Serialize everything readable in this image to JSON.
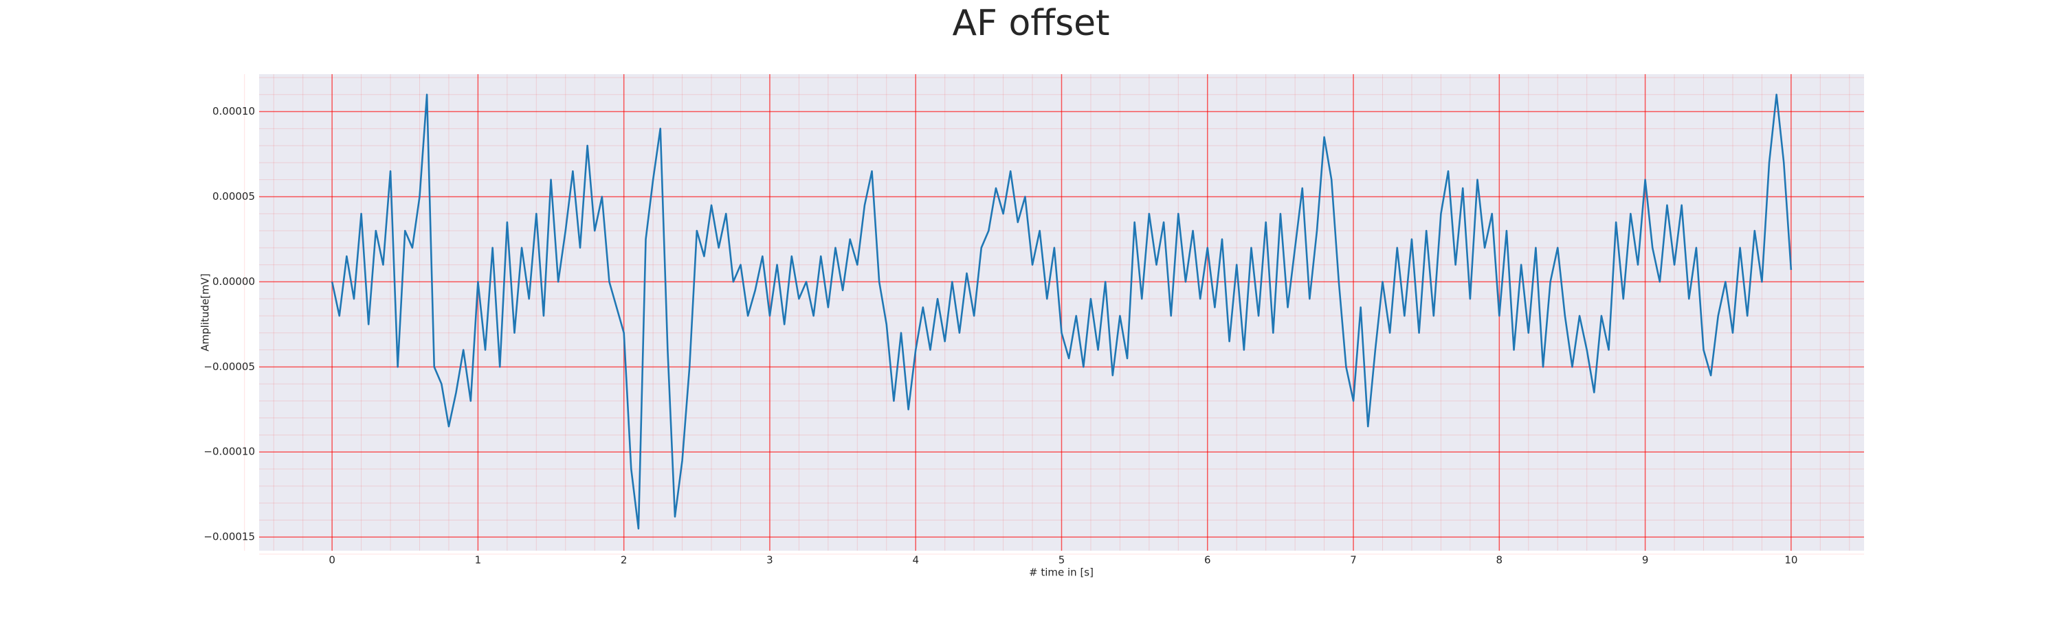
{
  "chart_data": {
    "type": "line",
    "title": "AF offset",
    "xlabel": "# time in [s]",
    "ylabel": "Amplitude[mV]",
    "xlim": [
      -0.5,
      10.5
    ],
    "ylim": [
      -0.000158,
      0.000122
    ],
    "xticks": [
      0,
      1,
      2,
      3,
      4,
      5,
      6,
      7,
      8,
      9,
      10
    ],
    "yticks": [
      {
        "value": -0.00015,
        "label": "−0.00015"
      },
      {
        "value": -0.0001,
        "label": "−0.00010"
      },
      {
        "value": -5e-05,
        "label": "−0.00005"
      },
      {
        "value": 0,
        "label": "0.00000"
      },
      {
        "value": 5e-05,
        "label": "0.00005"
      },
      {
        "value": 0.0001,
        "label": "0.00010"
      }
    ],
    "grid": true,
    "grid_color": "#ff0000",
    "minor_grid": true,
    "background": "#eaeaf2",
    "series": [
      {
        "color": "#1f77b4",
        "x": [
          0,
          0.05,
          0.1,
          0.15,
          0.2,
          0.25,
          0.3,
          0.35,
          0.4,
          0.45,
          0.5,
          0.55,
          0.6,
          0.65,
          0.7,
          0.75,
          0.8,
          0.85,
          0.9,
          0.95,
          1,
          1.05,
          1.1,
          1.15,
          1.2,
          1.25,
          1.3,
          1.35,
          1.4,
          1.45,
          1.5,
          1.55,
          1.6,
          1.65,
          1.7,
          1.75,
          1.8,
          1.85,
          1.9,
          1.95,
          2,
          2.05,
          2.1,
          2.15,
          2.2,
          2.25,
          2.3,
          2.35,
          2.4,
          2.45,
          2.5,
          2.55,
          2.6,
          2.65,
          2.7,
          2.75,
          2.8,
          2.85,
          2.9,
          2.95,
          3,
          3.05,
          3.1,
          3.15,
          3.2,
          3.25,
          3.3,
          3.35,
          3.4,
          3.45,
          3.5,
          3.55,
          3.6,
          3.65,
          3.7,
          3.75,
          3.8,
          3.85,
          3.9,
          3.95,
          4,
          4.05,
          4.1,
          4.15,
          4.2,
          4.25,
          4.3,
          4.35,
          4.4,
          4.45,
          4.5,
          4.55,
          4.6,
          4.65,
          4.7,
          4.75,
          4.8,
          4.85,
          4.9,
          4.95,
          5,
          5.05,
          5.1,
          5.15,
          5.2,
          5.25,
          5.3,
          5.35,
          5.4,
          5.45,
          5.5,
          5.55,
          5.6,
          5.65,
          5.7,
          5.75,
          5.8,
          5.85,
          5.9,
          5.95,
          6,
          6.05,
          6.1,
          6.15,
          6.2,
          6.25,
          6.3,
          6.35,
          6.4,
          6.45,
          6.5,
          6.55,
          6.6,
          6.65,
          6.7,
          6.75,
          6.8,
          6.85,
          6.9,
          6.95,
          7,
          7.05,
          7.1,
          7.15,
          7.2,
          7.25,
          7.3,
          7.35,
          7.4,
          7.45,
          7.5,
          7.55,
          7.6,
          7.65,
          7.7,
          7.75,
          7.8,
          7.85,
          7.9,
          7.95,
          8,
          8.05,
          8.1,
          8.15,
          8.2,
          8.25,
          8.3,
          8.35,
          8.4,
          8.45,
          8.5,
          8.55,
          8.6,
          8.65,
          8.7,
          8.75,
          8.8,
          8.85,
          8.9,
          8.95,
          9,
          9.05,
          9.1,
          9.15,
          9.2,
          9.25,
          9.3,
          9.35,
          9.4,
          9.45,
          9.5,
          9.55,
          9.6,
          9.65,
          9.7,
          9.75,
          9.8,
          9.85,
          9.9,
          9.95,
          10
        ],
        "values": [
          0,
          -2e-05,
          1.5e-05,
          -1e-05,
          4e-05,
          -2.5e-05,
          3e-05,
          1e-05,
          6.5e-05,
          -5e-05,
          3e-05,
          2e-05,
          5e-05,
          0.00011,
          -5e-05,
          -6e-05,
          -8.5e-05,
          -6.5e-05,
          -4e-05,
          -7e-05,
          0,
          -4e-05,
          2e-05,
          -5e-05,
          3.5e-05,
          -3e-05,
          2e-05,
          -1e-05,
          4e-05,
          -2e-05,
          6e-05,
          0,
          3e-05,
          6.5e-05,
          2e-05,
          8e-05,
          3e-05,
          5e-05,
          0,
          -1.5e-05,
          -3e-05,
          -0.00011,
          -0.000145,
          2.5e-05,
          6e-05,
          9e-05,
          -4e-05,
          -0.000138,
          -0.000105,
          -5e-05,
          3e-05,
          1.5e-05,
          4.5e-05,
          2e-05,
          4e-05,
          0,
          1e-05,
          -2e-05,
          -5e-06,
          1.5e-05,
          -2e-05,
          1e-05,
          -2.5e-05,
          1.5e-05,
          -1e-05,
          0,
          -2e-05,
          1.5e-05,
          -1.5e-05,
          2e-05,
          -5e-06,
          2.5e-05,
          1e-05,
          4.5e-05,
          6.5e-05,
          0,
          -2.5e-05,
          -7e-05,
          -3e-05,
          -7.5e-05,
          -4e-05,
          -1.5e-05,
          -4e-05,
          -1e-05,
          -3.5e-05,
          0,
          -3e-05,
          5e-06,
          -2e-05,
          2e-05,
          3e-05,
          5.5e-05,
          4e-05,
          6.5e-05,
          3.5e-05,
          5e-05,
          1e-05,
          3e-05,
          -1e-05,
          2e-05,
          -3e-05,
          -4.5e-05,
          -2e-05,
          -5e-05,
          -1e-05,
          -4e-05,
          0,
          -5.5e-05,
          -2e-05,
          -4.5e-05,
          3.5e-05,
          -1e-05,
          4e-05,
          1e-05,
          3.5e-05,
          -2e-05,
          4e-05,
          0,
          3e-05,
          -1e-05,
          2e-05,
          -1.5e-05,
          2.5e-05,
          -3.5e-05,
          1e-05,
          -4e-05,
          2e-05,
          -2e-05,
          3.5e-05,
          -3e-05,
          4e-05,
          -1.5e-05,
          2e-05,
          5.5e-05,
          -1e-05,
          3e-05,
          8.5e-05,
          6e-05,
          0,
          -5e-05,
          -7e-05,
          -1.5e-05,
          -8.5e-05,
          -4e-05,
          0,
          -3e-05,
          2e-05,
          -2e-05,
          2.5e-05,
          -3e-05,
          3e-05,
          -2e-05,
          4e-05,
          6.5e-05,
          1e-05,
          5.5e-05,
          -1e-05,
          6e-05,
          2e-05,
          4e-05,
          -2e-05,
          3e-05,
          -4e-05,
          1e-05,
          -3e-05,
          2e-05,
          -5e-05,
          0,
          2e-05,
          -2e-05,
          -5e-05,
          -2e-05,
          -4e-05,
          -6.5e-05,
          -2e-05,
          -4e-05,
          3.5e-05,
          -1e-05,
          4e-05,
          1e-05,
          6e-05,
          2e-05,
          0,
          4.5e-05,
          1e-05,
          4.5e-05,
          -1e-05,
          2e-05,
          -4e-05,
          -5.5e-05,
          -2e-05,
          0,
          -3e-05,
          2e-05,
          -2e-05,
          3e-05,
          0,
          7e-05,
          0.00011,
          7e-05,
          7e-06
        ]
      }
    ]
  }
}
